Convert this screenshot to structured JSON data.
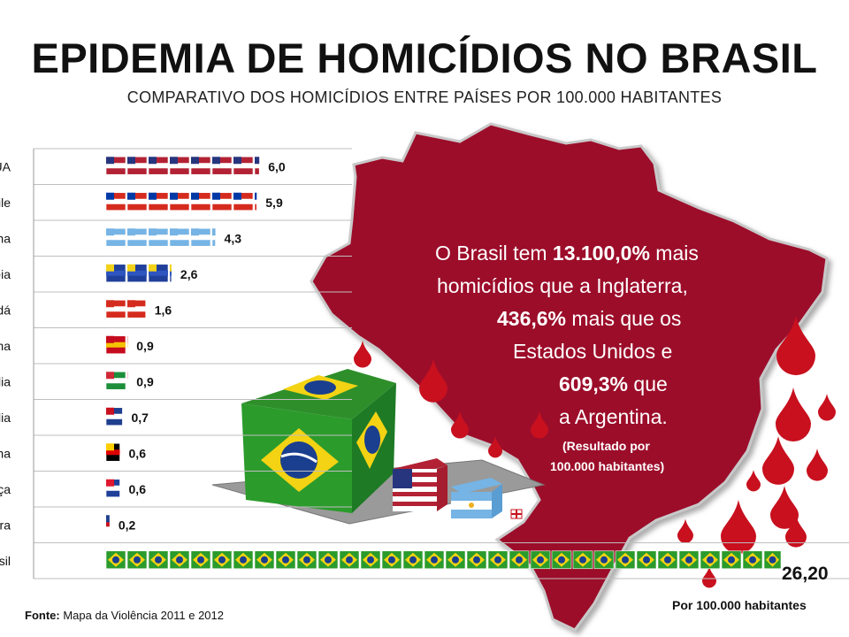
{
  "title": "EPIDEMIA DE HOMICÍDIOS NO BRASIL",
  "subtitle": "COMPARATIVO DOS HOMICÍDIOS ENTRE PAÍSES POR 100.000 HABITANTES",
  "callout": {
    "l1a": "O Brasil tem ",
    "l1b": "13.100,0%",
    "l1c": " mais",
    "l2": "homicídios que a Inglaterra,",
    "l3a": "436,6%",
    "l3b": "  mais que os",
    "l4": "Estados Unidos e",
    "l5a": "609,3%",
    "l5b": " que",
    "l6": "a Argentina.",
    "n1": "(Resultado por",
    "n2": "100.000 habitantes)"
  },
  "source_label": "Fonte:",
  "source_text": " Mapa da Violência 2011 e 2012",
  "unit_note": "Por 100.000 habitantes",
  "brasil_value_label": "26,20",
  "colors": {
    "map": "#9c0a2a",
    "drop": "#c8101e",
    "map_border": "#b7b7b7"
  },
  "chart_data": {
    "type": "bar",
    "title": "EPIDEMIA DE HOMICÍDIOS NO BRASIL",
    "subtitle": "COMPARATIVO DOS HOMICÍDIOS ENTRE PAÍSES POR 100.000 HABITANTES",
    "categories": [
      "EUA",
      "Chile",
      "Argentina",
      "União Européia",
      "Canadá",
      "Espanha",
      "Itália",
      "Austrália",
      "Alemanha",
      "França",
      "Inglaterra",
      "Brasil"
    ],
    "values": [
      6.0,
      5.9,
      4.3,
      2.6,
      1.6,
      0.9,
      0.9,
      0.7,
      0.6,
      0.6,
      0.2,
      26.2
    ],
    "value_labels": [
      "6,0",
      "5,9",
      "4,3",
      "2,6",
      "1,6",
      "0,9",
      "0,9",
      "0,7",
      "0,6",
      "0,6",
      "0,2",
      "26,20"
    ],
    "orientation": "horizontal",
    "grid": true
  }
}
